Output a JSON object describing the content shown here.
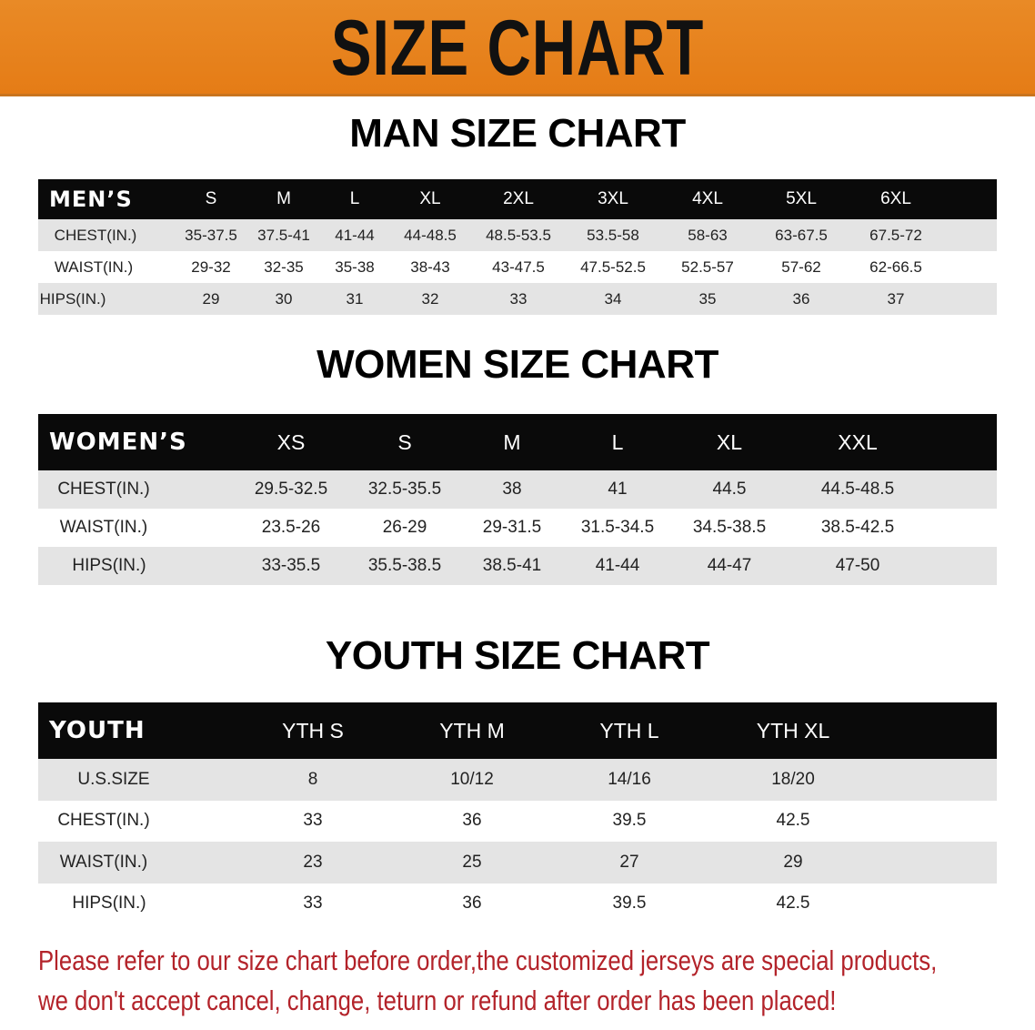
{
  "banner_title": "SIZE CHART",
  "men": {
    "title": "MAN SIZE CHART",
    "header_label": "MEN’S",
    "sizes": [
      "S",
      "M",
      "L",
      "XL",
      "2XL",
      "3XL",
      "4XL",
      "5XL",
      "6XL"
    ],
    "rows": [
      {
        "label": "CHEST(IN.)",
        "values": [
          "35-37.5",
          "37.5-41",
          "41-44",
          "44-48.5",
          "48.5-53.5",
          "53.5-58",
          "58-63",
          "63-67.5",
          "67.5-72"
        ]
      },
      {
        "label": "WAIST(IN.)",
        "values": [
          "29-32",
          "32-35",
          "35-38",
          "38-43",
          "43-47.5",
          "47.5-52.5",
          "52.5-57",
          "57-62",
          "62-66.5"
        ]
      },
      {
        "label": "HIPS(IN.)",
        "values": [
          "29",
          "30",
          "31",
          "32",
          "33",
          "34",
          "35",
          "36",
          "37"
        ]
      }
    ]
  },
  "women": {
    "title": "WOMEN SIZE CHART",
    "header_label": "WOMEN’S",
    "sizes": [
      "XS",
      "S",
      "M",
      "L",
      "XL",
      "XXL"
    ],
    "rows": [
      {
        "label": "CHEST(IN.)",
        "values": [
          "29.5-32.5",
          "32.5-35.5",
          "38",
          "41",
          "44.5",
          "44.5-48.5"
        ]
      },
      {
        "label": "WAIST(IN.)",
        "values": [
          "23.5-26",
          "26-29",
          "29-31.5",
          "31.5-34.5",
          "34.5-38.5",
          "38.5-42.5"
        ]
      },
      {
        "label": "HIPS(IN.)",
        "values": [
          "33-35.5",
          "35.5-38.5",
          "38.5-41",
          "41-44",
          "44-47",
          "47-50"
        ]
      }
    ]
  },
  "youth": {
    "title": "YOUTH SIZE CHART",
    "header_label": "YOUTH",
    "sizes": [
      "YTH S",
      "YTH M",
      "YTH L",
      "YTH XL"
    ],
    "rows": [
      {
        "label": "U.S.SIZE",
        "values": [
          "8",
          "10/12",
          "14/16",
          "18/20"
        ]
      },
      {
        "label": "CHEST(IN.)",
        "values": [
          "33",
          "36",
          "39.5",
          "42.5"
        ]
      },
      {
        "label": "WAIST(IN.)",
        "values": [
          "23",
          "25",
          "27",
          "29"
        ]
      },
      {
        "label": "HIPS(IN.)",
        "values": [
          "33",
          "36",
          "39.5",
          "42.5"
        ]
      }
    ]
  },
  "note": {
    "line1": "Please refer to our size chart before order,the customized jerseys are special products,",
    "line2": "we don't accept cancel, change, teturn or refund after order has been placed!"
  },
  "colors": {
    "banner": "#e8821f",
    "header": "#0a0a0a",
    "note": "#b3232a"
  }
}
